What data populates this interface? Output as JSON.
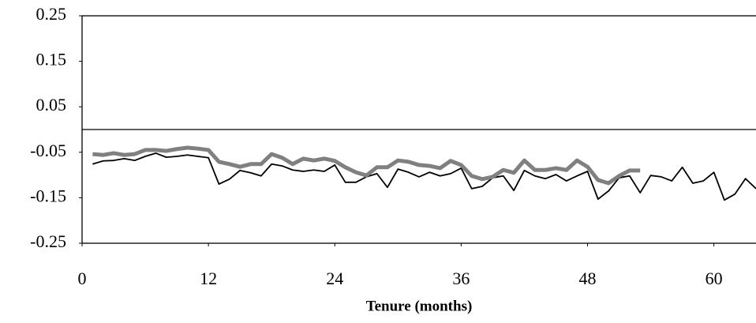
{
  "chart_data": {
    "type": "line",
    "x_label": "Tenure (months)",
    "x": [
      1,
      2,
      3,
      4,
      5,
      6,
      7,
      8,
      9,
      10,
      11,
      12,
      13,
      14,
      15,
      16,
      17,
      18,
      19,
      20,
      21,
      22,
      23,
      24,
      25,
      26,
      27,
      28,
      29,
      30,
      31,
      32,
      33,
      34,
      35,
      36,
      37,
      38,
      39,
      40,
      41,
      42,
      43,
      44,
      45,
      46,
      47,
      48,
      49,
      50,
      51,
      52,
      53,
      54,
      55,
      56,
      57,
      58,
      59,
      60,
      61,
      62,
      63,
      64
    ],
    "series": [
      {
        "color": "#000000",
        "values": [
          -0.076,
          -0.069,
          -0.068,
          -0.064,
          -0.068,
          -0.059,
          -0.052,
          -0.061,
          -0.059,
          -0.056,
          -0.059,
          -0.062,
          -0.12,
          -0.109,
          -0.09,
          -0.095,
          -0.102,
          -0.076,
          -0.08,
          -0.089,
          -0.092,
          -0.089,
          -0.092,
          -0.078,
          -0.116,
          -0.116,
          -0.104,
          -0.097,
          -0.127,
          -0.087,
          -0.094,
          -0.104,
          -0.094,
          -0.102,
          -0.097,
          -0.085,
          -0.13,
          -0.125,
          -0.106,
          -0.102,
          -0.134,
          -0.09,
          -0.102,
          -0.108,
          -0.099,
          -0.113,
          -0.102,
          -0.092,
          -0.153,
          -0.135,
          -0.106,
          -0.102,
          -0.139,
          -0.101,
          -0.104,
          -0.113,
          -0.083,
          -0.118,
          -0.113,
          -0.094,
          -0.155,
          -0.142,
          -0.108,
          -0.13
        ]
      },
      {
        "color": "#808080",
        "values": [
          -0.054,
          -0.056,
          -0.052,
          -0.056,
          -0.054,
          -0.045,
          -0.045,
          -0.047,
          -0.043,
          -0.04,
          -0.042,
          -0.045,
          -0.071,
          -0.076,
          -0.082,
          -0.076,
          -0.076,
          -0.054,
          -0.062,
          -0.076,
          -0.064,
          -0.068,
          -0.064,
          -0.069,
          -0.083,
          -0.094,
          -0.101,
          -0.083,
          -0.083,
          -0.068,
          -0.071,
          -0.078,
          -0.08,
          -0.085,
          -0.069,
          -0.078,
          -0.102,
          -0.109,
          -0.104,
          -0.089,
          -0.095,
          -0.068,
          -0.089,
          -0.089,
          -0.085,
          -0.089,
          -0.068,
          -0.082,
          -0.111,
          -0.118,
          -0.102,
          -0.09,
          -0.09,
          null,
          null,
          null,
          null,
          null,
          null,
          null,
          null,
          null,
          null,
          null
        ]
      }
    ],
    "xlim": [
      0,
      64
    ],
    "xticks": [
      0,
      12,
      24,
      36,
      48,
      60
    ],
    "ylim": [
      -0.25,
      0.25
    ],
    "yticks": [
      0.25,
      0.15,
      0.05,
      -0.05,
      -0.15,
      -0.25
    ]
  }
}
